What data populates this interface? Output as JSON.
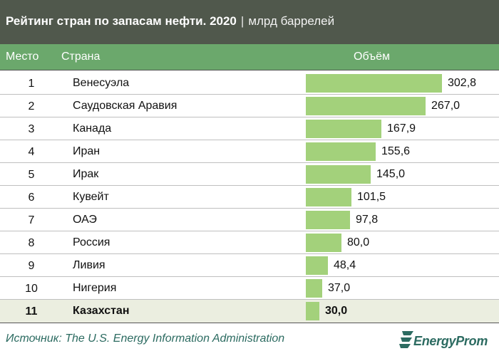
{
  "header": {
    "title": "Рейтинг стран по запасам нефти. 2020",
    "separator": "|",
    "unit": "млрд баррелей"
  },
  "columns": {
    "rank": "Место",
    "country": "Страна",
    "volume": "Объём"
  },
  "chart_data": {
    "type": "bar",
    "orientation": "horizontal",
    "title": "Рейтинг стран по запасам нефти. 2020",
    "unit": "млрд баррелей",
    "ranks": [
      "1",
      "2",
      "3",
      "4",
      "5",
      "6",
      "7",
      "8",
      "9",
      "10",
      "11"
    ],
    "categories": [
      "Венесуэла",
      "Саудовская Аравия",
      "Канада",
      "Иран",
      "Ирак",
      "Кувейт",
      "ОАЭ",
      "Россия",
      "Ливия",
      "Нигерия",
      "Казахстан"
    ],
    "values": [
      302.8,
      267.0,
      167.9,
      155.6,
      145.0,
      101.5,
      97.8,
      80.0,
      48.4,
      37.0,
      30.0
    ],
    "value_labels": [
      "302,8",
      "267,0",
      "167,9",
      "155,6",
      "145,0",
      "101,5",
      "97,8",
      "80,0",
      "48,4",
      "37,0",
      "30,0"
    ],
    "highlighted_category": "Казахстан",
    "bar_color": "#a3d17b",
    "highlight_row_color": "#ebeee0",
    "grid": false
  },
  "footer": {
    "source": "Источник: The U.S. Energy Information Administration",
    "logo_text": "EnergyProm"
  },
  "colors": {
    "title_bar": "#50584c",
    "header_bar": "#6ba86c",
    "brand": "#2c6b61"
  }
}
